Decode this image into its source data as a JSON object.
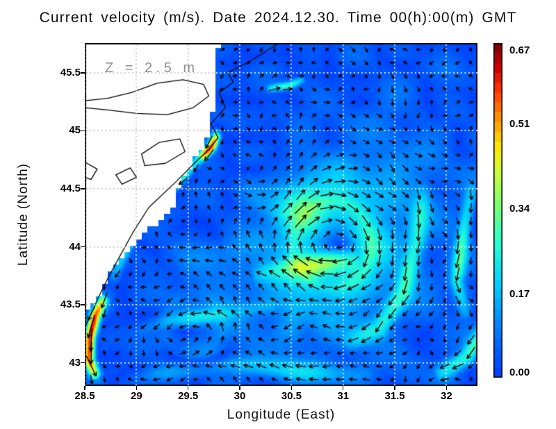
{
  "chart_data": {
    "type": "vector_field_map",
    "title": "Current velocity (m/s). Date 2024.12.30. Time 00(h):00(m) GMT",
    "xlabel": "Longitude (East)",
    "ylabel": "Latitude (North)",
    "depth_annotation": "Z = 2.5 m",
    "axes": {
      "lon_min": 28.5,
      "lon_max": 32.3,
      "lat_min": 42.8,
      "lat_max": 45.757,
      "x_tick_values": [
        28.5,
        29,
        29.5,
        30,
        30.5,
        31,
        31.5,
        32
      ],
      "x_tick_labels": [
        "28.5",
        "29",
        "29.5",
        "30",
        "30.5",
        "31",
        "31.5",
        "32"
      ],
      "y_tick_values": [
        43,
        43.5,
        44,
        44.5,
        45,
        45.5
      ],
      "y_tick_labels": [
        "43",
        "43.5",
        "44",
        "44.5",
        "45",
        "45.5"
      ],
      "grid_lon": [
        28.5,
        29,
        29.5,
        30,
        30.5,
        31,
        31.5,
        32
      ],
      "grid_lat": [
        43,
        43.5,
        44,
        44.5,
        45,
        45.5
      ]
    },
    "colorbar": {
      "min": 0.0,
      "max": 0.67,
      "steps": 34,
      "tick_values": [
        0.0,
        0.17,
        0.34,
        0.51,
        0.67
      ],
      "tick_labels": [
        "0.00",
        "0.17",
        "0.34",
        "0.51",
        "0.67"
      ]
    },
    "colors": {
      "sea_base": "#0047ff",
      "land": "#ffffff",
      "coastline": "#000000",
      "arrows": "#000000",
      "grid_dots_sea": "#ffffff",
      "grid_dots_land": "#bfbfbf",
      "annotation_text": "#8f8f8f",
      "frame": "#000000",
      "title_text": "#111111"
    },
    "colormap_stops": [
      [
        0.0,
        [
          0,
          64,
          255
        ]
      ],
      [
        0.14,
        [
          0,
          128,
          255
        ]
      ],
      [
        0.27,
        [
          0,
          205,
          255
        ]
      ],
      [
        0.4,
        [
          40,
          255,
          210
        ]
      ],
      [
        0.51,
        [
          120,
          255,
          120
        ]
      ],
      [
        0.62,
        [
          205,
          255,
          60
        ]
      ],
      [
        0.7,
        [
          255,
          230,
          0
        ]
      ],
      [
        0.78,
        [
          255,
          150,
          0
        ]
      ],
      [
        0.87,
        [
          255,
          55,
          0
        ]
      ],
      [
        0.94,
        [
          210,
          0,
          0
        ]
      ],
      [
        1.0,
        [
          135,
          0,
          0
        ]
      ]
    ],
    "mask_cell_deg": 0.055,
    "land_mask_boundary": [
      [
        45.757,
        29.8
      ],
      [
        45.5,
        29.74
      ],
      [
        45.3,
        29.78
      ],
      [
        45.0,
        29.7
      ],
      [
        44.85,
        29.64
      ],
      [
        44.6,
        29.46
      ],
      [
        44.3,
        29.33
      ],
      [
        44.1,
        29.06
      ],
      [
        43.95,
        28.93
      ],
      [
        43.8,
        28.77
      ],
      [
        43.6,
        28.64
      ],
      [
        43.5,
        28.57
      ],
      [
        43.44,
        28.5
      ]
    ],
    "coastlines": [
      {
        "name": "west-coast",
        "closed": false,
        "points": [
          [
            30.38,
            45.757
          ],
          [
            30.1,
            45.6
          ],
          [
            29.88,
            45.5
          ],
          [
            29.94,
            45.42
          ],
          [
            29.8,
            45.33
          ],
          [
            29.86,
            45.2
          ],
          [
            29.72,
            45.06
          ],
          [
            29.79,
            44.94
          ],
          [
            29.7,
            44.84
          ],
          [
            29.56,
            44.72
          ],
          [
            29.37,
            44.55
          ],
          [
            29.12,
            44.34
          ],
          [
            28.97,
            44.13
          ],
          [
            28.84,
            43.92
          ],
          [
            28.73,
            43.74
          ],
          [
            28.64,
            43.58
          ],
          [
            28.57,
            43.44
          ],
          [
            28.5,
            43.3
          ]
        ]
      },
      {
        "name": "danube-delta-lagoon",
        "closed": true,
        "points": [
          [
            28.5,
            45.26
          ],
          [
            28.72,
            45.28
          ],
          [
            28.95,
            45.33
          ],
          [
            29.2,
            45.41
          ],
          [
            29.45,
            45.44
          ],
          [
            29.65,
            45.4
          ],
          [
            29.7,
            45.3
          ],
          [
            29.55,
            45.2
          ],
          [
            29.3,
            45.14
          ],
          [
            29.0,
            45.15
          ],
          [
            28.72,
            45.18
          ],
          [
            28.5,
            45.2
          ]
        ]
      },
      {
        "name": "lagoon-south",
        "closed": true,
        "points": [
          [
            29.05,
            44.8
          ],
          [
            29.22,
            44.9
          ],
          [
            29.42,
            44.93
          ],
          [
            29.47,
            44.82
          ],
          [
            29.28,
            44.72
          ],
          [
            29.08,
            44.7
          ]
        ]
      },
      {
        "name": "small-lake",
        "closed": true,
        "points": [
          [
            28.8,
            44.62
          ],
          [
            28.94,
            44.68
          ],
          [
            29.0,
            44.6
          ],
          [
            28.86,
            44.54
          ]
        ]
      },
      {
        "name": "edge-inlet",
        "closed": false,
        "points": [
          [
            28.5,
            44.73
          ],
          [
            28.62,
            44.67
          ],
          [
            28.56,
            44.58
          ],
          [
            28.5,
            44.6
          ]
        ]
      }
    ],
    "flow_features": {
      "eddies": [
        {
          "name": "central-anticyclone",
          "lon": 30.9,
          "lat": 44.02,
          "radius": 0.38,
          "peak": 0.28,
          "rotation": "clockwise"
        },
        {
          "name": "weak-cyclone-nw",
          "lon": 30.38,
          "lat": 44.58,
          "radius": 0.3,
          "peak": 0.09,
          "rotation": "ccw"
        },
        {
          "name": "weak-cyclone-ne",
          "lon": 31.9,
          "lat": 45.05,
          "radius": 0.5,
          "peak": 0.05,
          "rotation": "ccw"
        },
        {
          "name": "weak-swirl-sw",
          "lon": 29.55,
          "lat": 43.33,
          "radius": 0.28,
          "peak": 0.09,
          "rotation": "ccw"
        }
      ],
      "jets": [
        {
          "name": "rim-current-north",
          "peak": 0.28,
          "width": 0.055,
          "path": [
            [
              29.8,
              45.02
            ],
            [
              29.7,
              44.85
            ],
            [
              29.44,
              44.6
            ],
            [
              29.14,
              44.34
            ],
            [
              28.96,
              44.1
            ],
            [
              28.85,
              43.88
            ],
            [
              28.76,
              43.7
            ]
          ]
        },
        {
          "name": "rim-current-core",
          "peak": 0.63,
          "width": 0.055,
          "path": [
            [
              28.7,
              43.58
            ],
            [
              28.6,
              43.4
            ],
            [
              28.55,
              43.22
            ],
            [
              28.54,
              43.02
            ],
            [
              28.62,
              42.86
            ]
          ]
        },
        {
          "name": "eddy-south-band",
          "peak": 0.26,
          "width": 0.1,
          "path": [
            [
              31.15,
              43.92
            ],
            [
              30.75,
              43.85
            ],
            [
              30.45,
              43.82
            ],
            [
              30.12,
              43.76
            ]
          ]
        },
        {
          "name": "east-filament",
          "peak": 0.2,
          "width": 0.09,
          "path": [
            [
              31.78,
              44.55
            ],
            [
              31.72,
              44.05
            ],
            [
              31.58,
              43.6
            ],
            [
              31.35,
              43.3
            ],
            [
              31.0,
              43.15
            ]
          ]
        },
        {
          "name": "east-edge-band",
          "peak": 0.24,
          "width": 0.07,
          "path": [
            [
              32.25,
              44.55
            ],
            [
              32.16,
              44.1
            ],
            [
              32.1,
              43.7
            ],
            [
              32.2,
              43.38
            ]
          ]
        },
        {
          "name": "south-westward-band",
          "peak": 0.15,
          "width": 0.09,
          "path": [
            [
              31.3,
              42.9
            ],
            [
              30.6,
              42.92
            ],
            [
              29.9,
              42.98
            ],
            [
              29.2,
              42.9
            ],
            [
              28.8,
              42.84
            ]
          ]
        },
        {
          "name": "delta-coastal-jet",
          "peak": 0.4,
          "width": 0.04,
          "path": [
            [
              29.79,
              44.98
            ],
            [
              29.73,
              44.86
            ],
            [
              29.62,
              44.76
            ]
          ]
        },
        {
          "name": "north-dash",
          "peak": 0.26,
          "width": 0.035,
          "path": [
            [
              30.26,
              45.36
            ],
            [
              30.48,
              45.39
            ],
            [
              30.63,
              45.45
            ]
          ]
        },
        {
          "name": "west-cyan-band",
          "peak": 0.16,
          "width": 0.07,
          "path": [
            [
              30.35,
              43.5
            ],
            [
              29.85,
              43.42
            ],
            [
              29.35,
              43.36
            ],
            [
              29.0,
              43.28
            ]
          ]
        },
        {
          "name": "southeast-corner-band",
          "peak": 0.24,
          "width": 0.08,
          "path": [
            [
              32.42,
              43.35
            ],
            [
              32.2,
              43.05
            ],
            [
              31.9,
              42.88
            ]
          ]
        },
        {
          "name": "south-of-eddy-drift",
          "peak": 0.13,
          "width": 0.18,
          "path": [
            [
              30.62,
              43.62
            ],
            [
              30.5,
              43.3
            ],
            [
              30.32,
              43.05
            ]
          ]
        },
        {
          "name": "midwest-drift",
          "peak": 0.1,
          "width": 0.15,
          "path": [
            [
              30.35,
              44.05
            ],
            [
              29.85,
              44.0
            ],
            [
              29.4,
              43.8
            ]
          ]
        }
      ],
      "noise": {
        "amp1": 0.022,
        "amp2": 0.018
      }
    },
    "arrows": {
      "nx": 30,
      "ny": 26,
      "len_base": 6,
      "len_scale": 52,
      "len_max": 34,
      "min_speed": 0.004
    }
  }
}
